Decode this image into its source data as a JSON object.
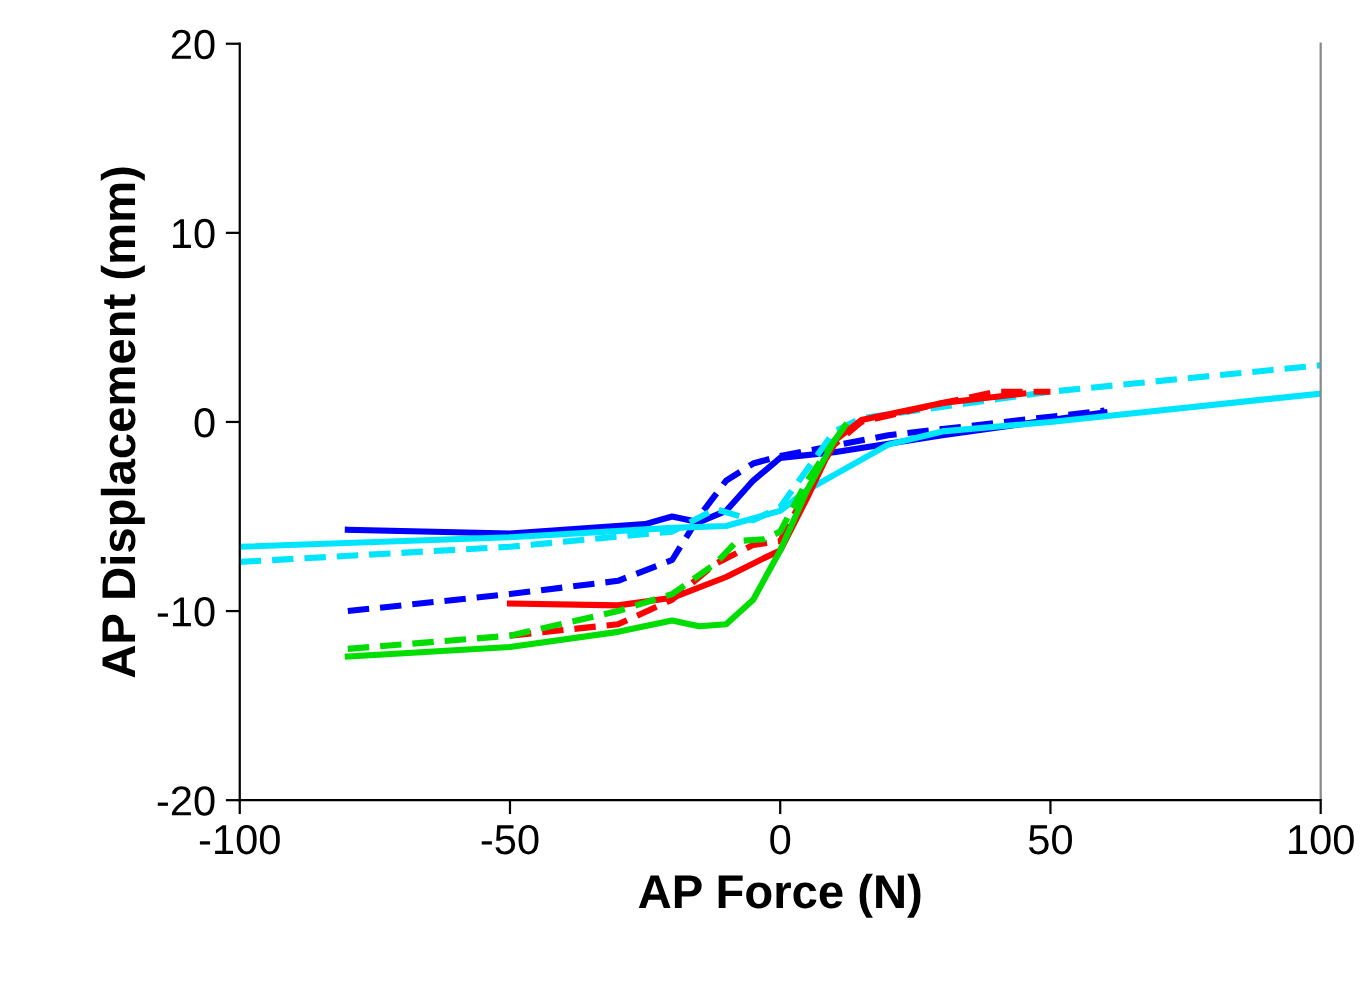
{
  "chart_data": {
    "type": "line",
    "xlabel": "AP Force (N)",
    "ylabel": "AP Displacement (mm)",
    "xlim": [
      -100,
      100
    ],
    "ylim": [
      -20,
      20
    ],
    "xticks": [
      -100,
      -50,
      0,
      50,
      100
    ],
    "yticks": [
      -20,
      -10,
      0,
      10,
      20
    ],
    "grid": false,
    "legend": false,
    "marker": "none",
    "series": [
      {
        "color": "#0000ff",
        "line_style": "solid",
        "x": [
          -80,
          -50,
          -25,
          -20,
          -15,
          -10,
          -5,
          0,
          10,
          30,
          60
        ],
        "values": [
          -5.7,
          -5.9,
          -5.4,
          -5.0,
          -5.3,
          -4.7,
          -3.1,
          -1.9,
          -1.6,
          -0.7,
          0.5
        ]
      },
      {
        "color": "#0000ff",
        "line_style": "dashed",
        "x": [
          -80,
          -50,
          -30,
          -20,
          -15,
          -10,
          -5,
          0,
          20,
          60
        ],
        "values": [
          -10.0,
          -9.1,
          -8.4,
          -7.3,
          -5.0,
          -3.1,
          -2.2,
          -1.8,
          -0.7,
          0.6
        ]
      },
      {
        "color": "#00e5ff",
        "line_style": "solid",
        "x": [
          -100,
          -50,
          -20,
          -10,
          0,
          5,
          10,
          20,
          30,
          50,
          100
        ],
        "values": [
          -6.6,
          -6.1,
          -5.6,
          -5.5,
          -4.7,
          -3.6,
          -2.8,
          -1.2,
          -0.5,
          0.0,
          1.5
        ]
      },
      {
        "color": "#00e5ff",
        "line_style": "dashed",
        "x": [
          -100,
          -50,
          -20,
          -12,
          -5,
          0,
          5,
          10,
          15,
          50,
          100
        ],
        "values": [
          -7.4,
          -6.6,
          -5.8,
          -4.6,
          -5.2,
          -4.5,
          -2.5,
          -0.5,
          0.2,
          1.6,
          3.0
        ]
      },
      {
        "color": "#ff0000",
        "line_style": "solid",
        "x": [
          -50,
          -30,
          -20,
          -10,
          -3,
          0,
          5,
          10,
          15,
          30,
          45
        ],
        "values": [
          -9.6,
          -9.7,
          -9.3,
          -8.2,
          -7.2,
          -6.8,
          -4.0,
          -1.0,
          0.1,
          1.0,
          1.5
        ]
      },
      {
        "color": "#ff0000",
        "line_style": "dashed",
        "x": [
          -50,
          -30,
          -20,
          -12,
          -5,
          0,
          5,
          10,
          15,
          30,
          40,
          50
        ],
        "values": [
          -11.3,
          -10.7,
          -9.4,
          -7.5,
          -6.5,
          -6.3,
          -3.6,
          -1.2,
          0.0,
          1.0,
          1.6,
          1.6
        ]
      },
      {
        "color": "#00dd00",
        "line_style": "solid",
        "x": [
          -80,
          -50,
          -30,
          -20,
          -15,
          -10,
          -5,
          0,
          5,
          10,
          12
        ],
        "values": [
          -12.4,
          -11.9,
          -11.1,
          -10.5,
          -10.8,
          -10.7,
          -9.4,
          -6.8,
          -3.6,
          -1.0,
          -0.2
        ]
      },
      {
        "color": "#00dd00",
        "line_style": "dashed",
        "x": [
          -80,
          -50,
          -30,
          -20,
          -12,
          -8,
          -3,
          0,
          5,
          10
        ],
        "values": [
          -12.0,
          -11.3,
          -10.0,
          -9.1,
          -7.5,
          -6.3,
          -6.2,
          -5.8,
          -3.1,
          -1.0
        ]
      }
    ]
  }
}
